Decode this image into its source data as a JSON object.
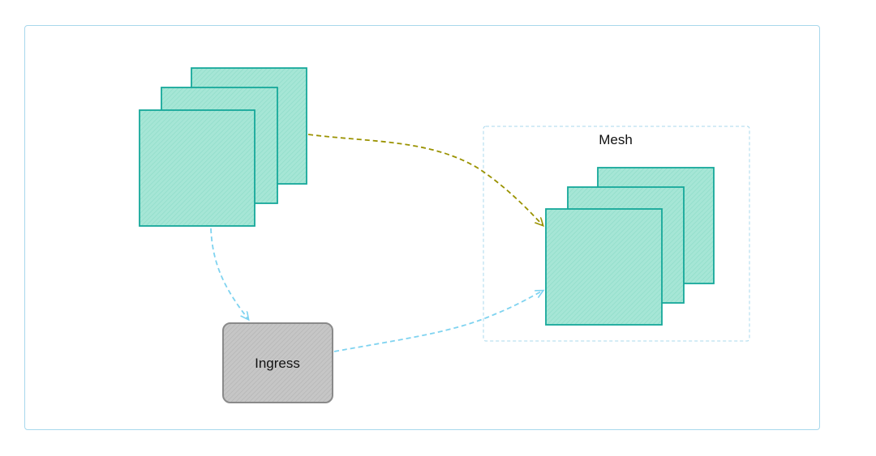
{
  "diagram": {
    "mesh_group": {
      "label": "Mesh"
    },
    "ingress_node": {
      "label": "Ingress"
    }
  },
  "colors": {
    "frame_border": "#a8d8ec",
    "service_fill": "#a8e8d8",
    "service_stroke": "#16a89a",
    "ingress_fill": "#c2c2c2",
    "ingress_stroke": "#8a8a8a",
    "mesh_border": "#a8d8ec",
    "olive_edge": "#9a9200",
    "blue_edge": "#7fd3f0"
  }
}
